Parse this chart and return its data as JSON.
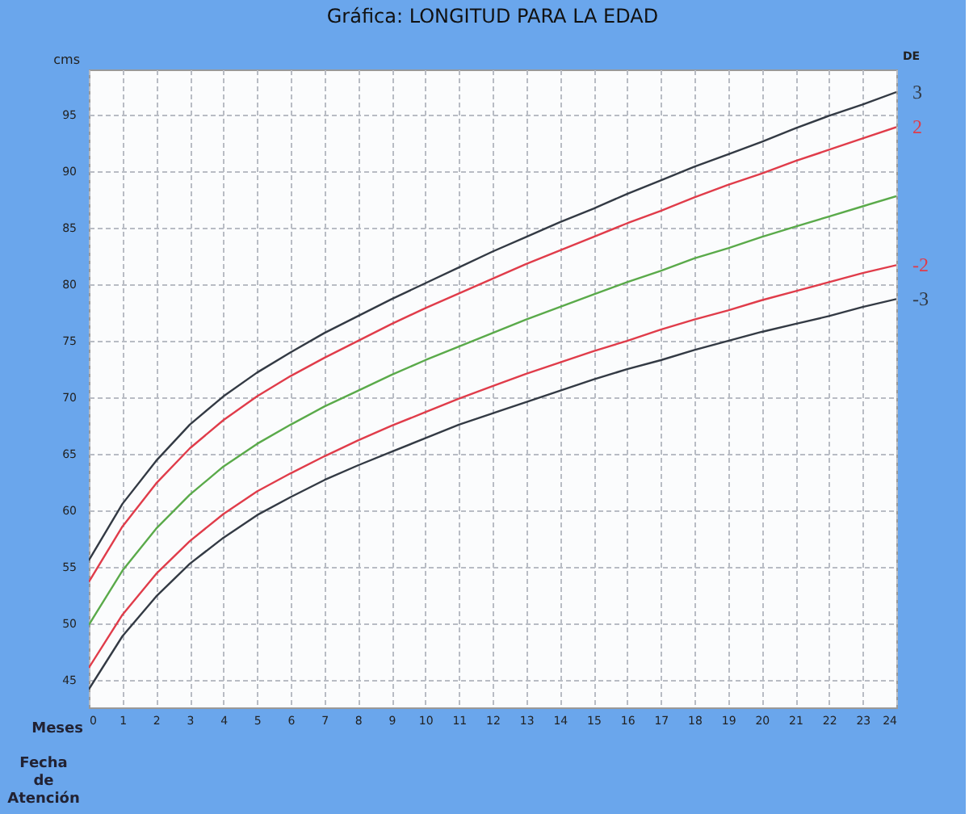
{
  "chart_data": {
    "type": "line",
    "title": "Gráfica: LONGITUD PARA LA EDAD",
    "xlabel": "Meses",
    "ylabel": "cms",
    "legend_title": "DE",
    "x": [
      0,
      1,
      2,
      3,
      4,
      5,
      6,
      7,
      8,
      9,
      10,
      11,
      12,
      13,
      14,
      15,
      16,
      17,
      18,
      19,
      20,
      21,
      22,
      23,
      24
    ],
    "series": [
      {
        "name": "3",
        "color": "#333a44",
        "values": [
          55.6,
          60.6,
          64.4,
          67.6,
          70.1,
          72.2,
          74.0,
          75.7,
          77.2,
          78.7,
          80.1,
          81.5,
          82.9,
          84.2,
          85.5,
          86.7,
          88.0,
          89.2,
          90.4,
          91.5,
          92.6,
          93.8,
          94.9,
          95.9,
          97.0
        ]
      },
      {
        "name": "2",
        "color": "#e03c4a",
        "values": [
          53.7,
          58.6,
          62.4,
          65.5,
          68.0,
          70.1,
          71.9,
          73.5,
          75.0,
          76.5,
          77.9,
          79.2,
          80.5,
          81.8,
          83.0,
          84.2,
          85.4,
          86.5,
          87.7,
          88.8,
          89.8,
          90.9,
          91.9,
          92.9,
          93.9
        ]
      },
      {
        "color": "#5aaa4a",
        "values": [
          49.9,
          54.7,
          58.4,
          61.4,
          63.9,
          65.9,
          67.6,
          69.2,
          70.6,
          72.0,
          73.3,
          74.5,
          75.7,
          76.9,
          78.0,
          79.1,
          80.2,
          81.2,
          82.3,
          83.2,
          84.2,
          85.1,
          86.0,
          86.9,
          87.8
        ]
      },
      {
        "name": "-2",
        "color": "#e03c4a",
        "values": [
          46.1,
          50.8,
          54.4,
          57.3,
          59.7,
          61.7,
          63.3,
          64.8,
          66.2,
          67.5,
          68.7,
          69.9,
          71.0,
          72.1,
          73.1,
          74.1,
          75.0,
          76.0,
          76.9,
          77.7,
          78.6,
          79.4,
          80.2,
          81.0,
          81.7
        ]
      },
      {
        "name": "-3",
        "color": "#333a44",
        "values": [
          44.2,
          48.9,
          52.4,
          55.3,
          57.6,
          59.6,
          61.2,
          62.7,
          64.0,
          65.2,
          66.4,
          67.6,
          68.6,
          69.6,
          70.6,
          71.6,
          72.5,
          73.3,
          74.2,
          75.0,
          75.8,
          76.5,
          77.2,
          78.0,
          78.7
        ]
      }
    ],
    "xlim": [
      0,
      24
    ],
    "xticks": [
      0,
      1,
      2,
      3,
      4,
      5,
      6,
      7,
      8,
      9,
      10,
      11,
      12,
      13,
      14,
      15,
      16,
      17,
      18,
      19,
      20,
      21,
      22,
      23,
      24
    ],
    "ylim": [
      42.6,
      99
    ],
    "yticks": [
      45,
      50,
      55,
      60,
      65,
      70,
      75,
      80,
      85,
      90,
      95
    ],
    "grid": true,
    "legend": "right",
    "marker": "none",
    "line_style": "solid",
    "annotations": [
      "Fecha de Atención"
    ]
  }
}
